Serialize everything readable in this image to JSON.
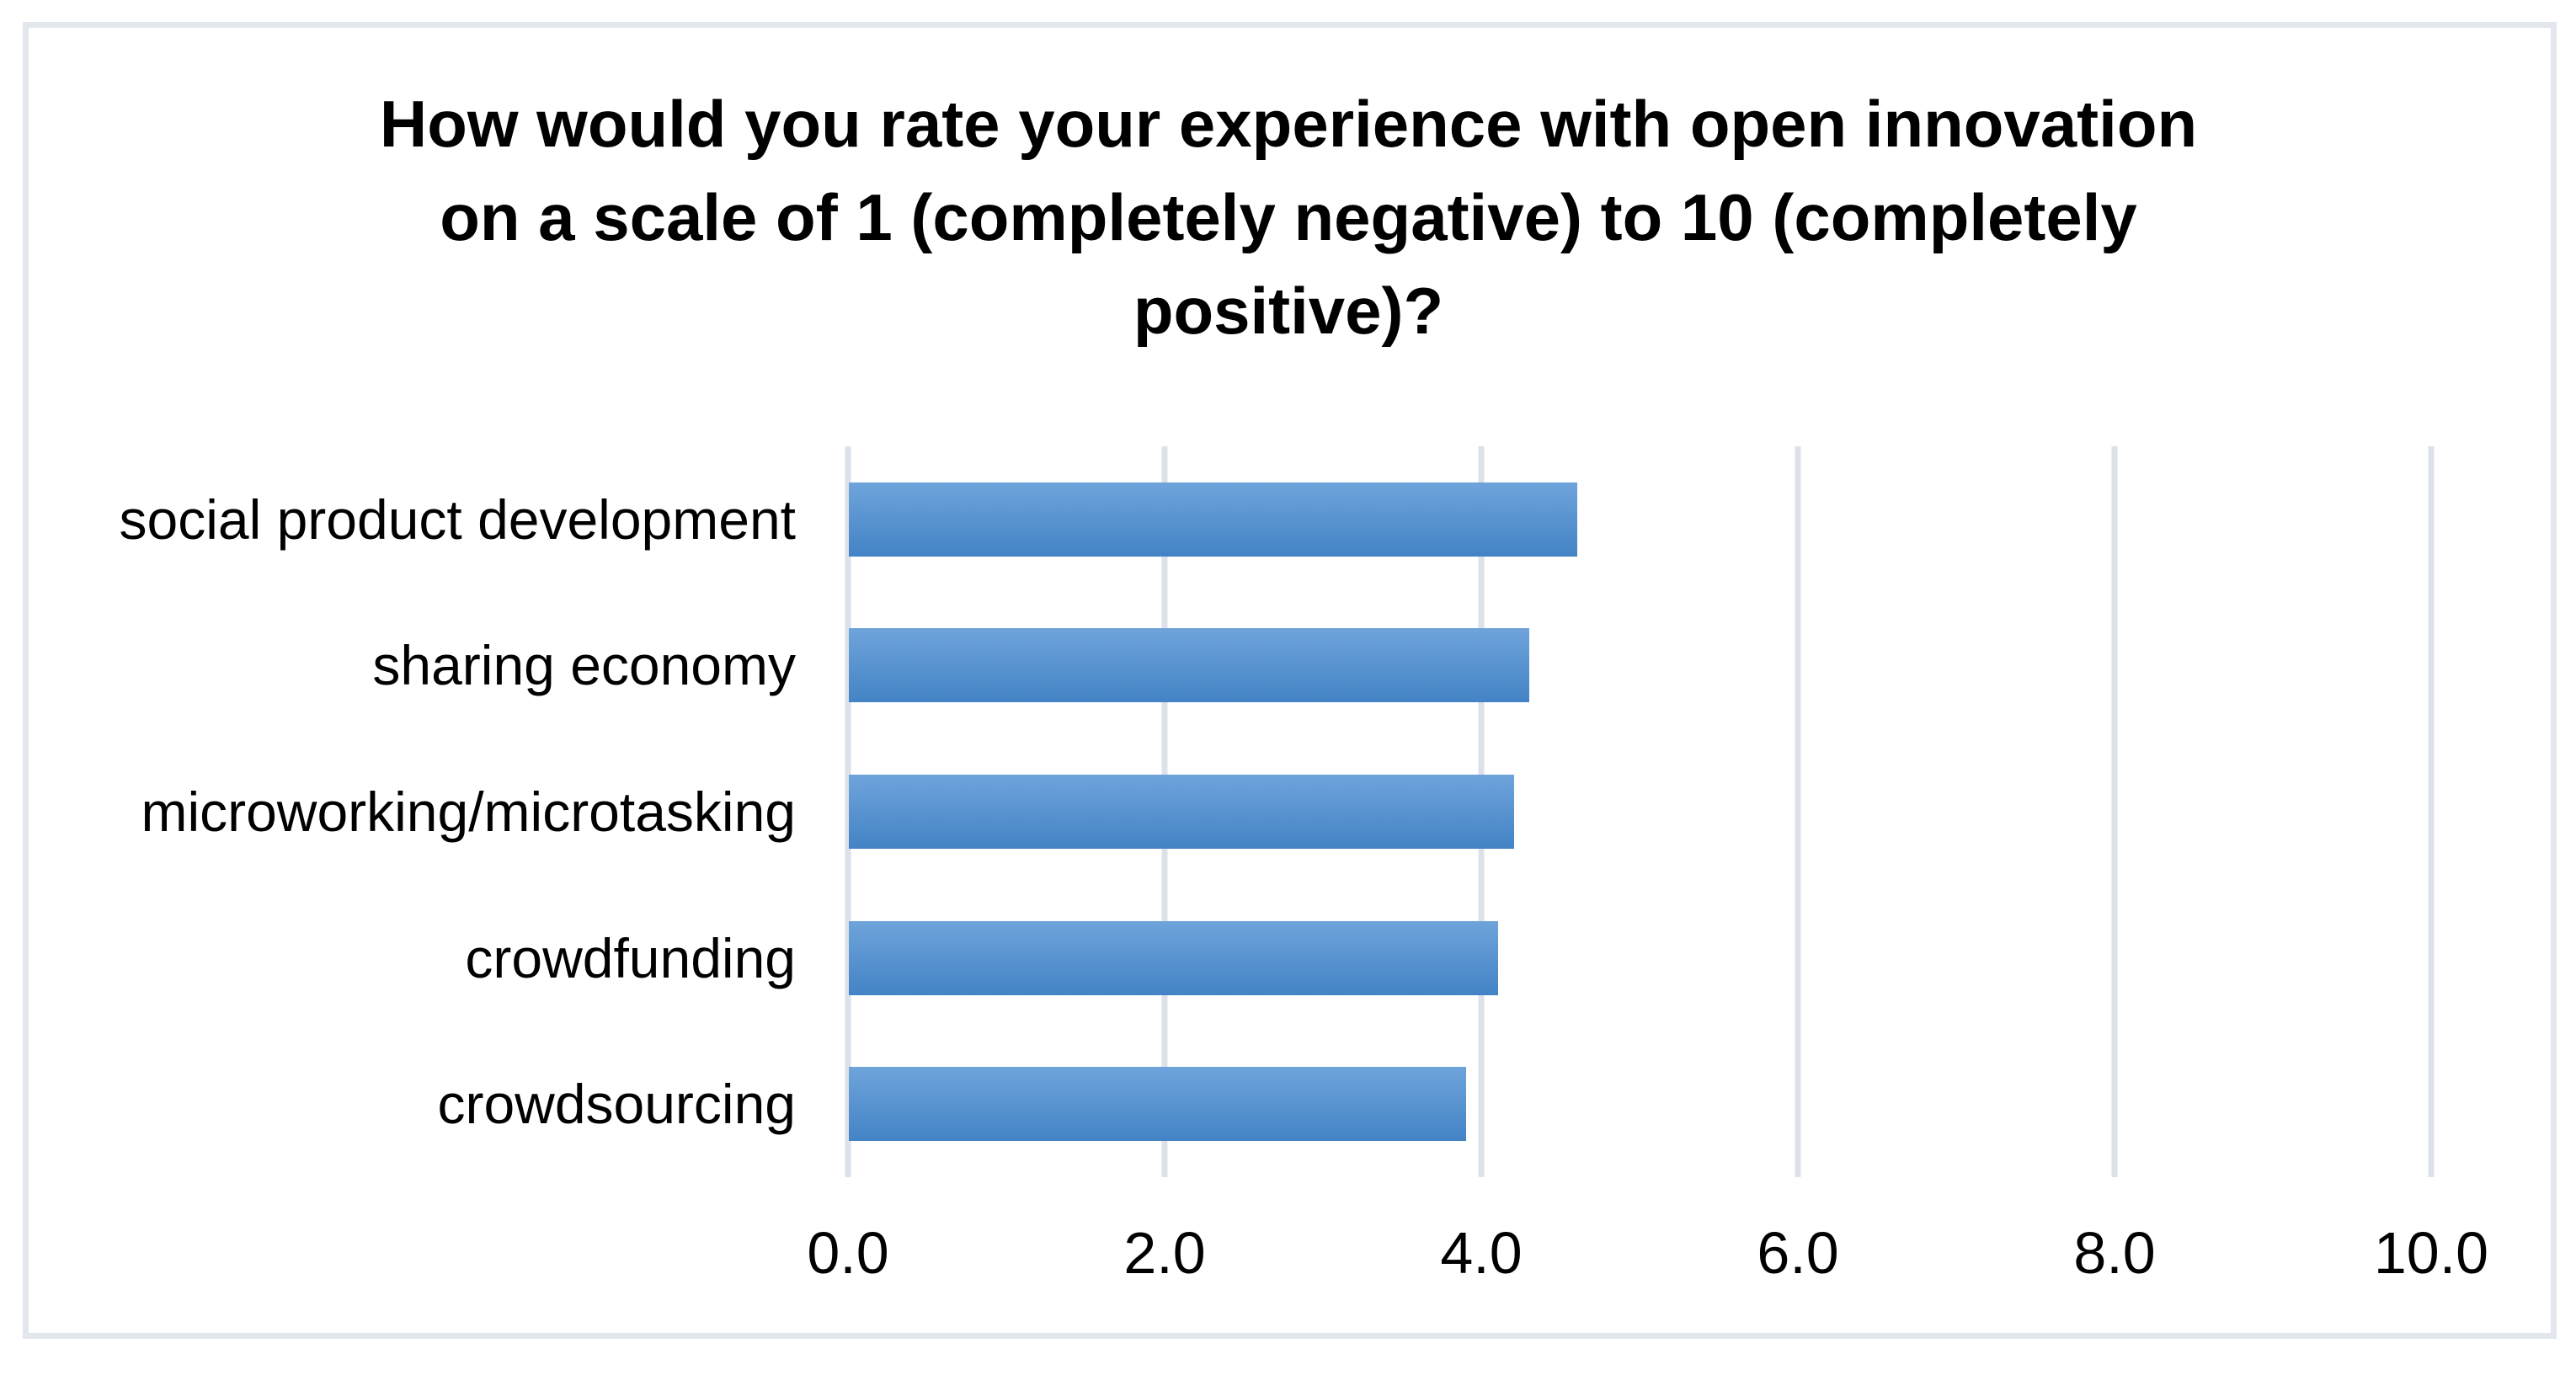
{
  "page": {
    "background": "#FFFFFF"
  },
  "chart": {
    "border_color": "#E2E6ED",
    "title_lines": [
      "How would you rate your experience with open innovation",
      "on a scale of 1 (completely negative) to 10 (completely",
      "positive)?"
    ]
  },
  "chart_data": {
    "type": "bar",
    "orientation": "horizontal",
    "title": "How would you rate your experience with open innovation on a scale of 1 (completely negative) to 10 (completely positive)?",
    "categories": [
      "social product development",
      "sharing economy",
      "microworking/microtasking",
      "crowdfunding",
      "crowdsourcing"
    ],
    "values": [
      4.6,
      4.3,
      4.2,
      4.1,
      3.9
    ],
    "xlabel": "",
    "ylabel": "",
    "xlim": [
      0,
      10
    ],
    "xticks": [
      0,
      2,
      4,
      6,
      8,
      10
    ],
    "xtick_labels": [
      "0.0",
      "2.0",
      "4.0",
      "6.0",
      "8.0",
      "10.0"
    ],
    "grid": true,
    "legend": false,
    "style": {
      "bar_gradient_top": "#6FA4DB",
      "bar_gradient_bottom": "#4383C5",
      "gridline_color": "#DCE1EA",
      "text_color": "#000000"
    }
  }
}
